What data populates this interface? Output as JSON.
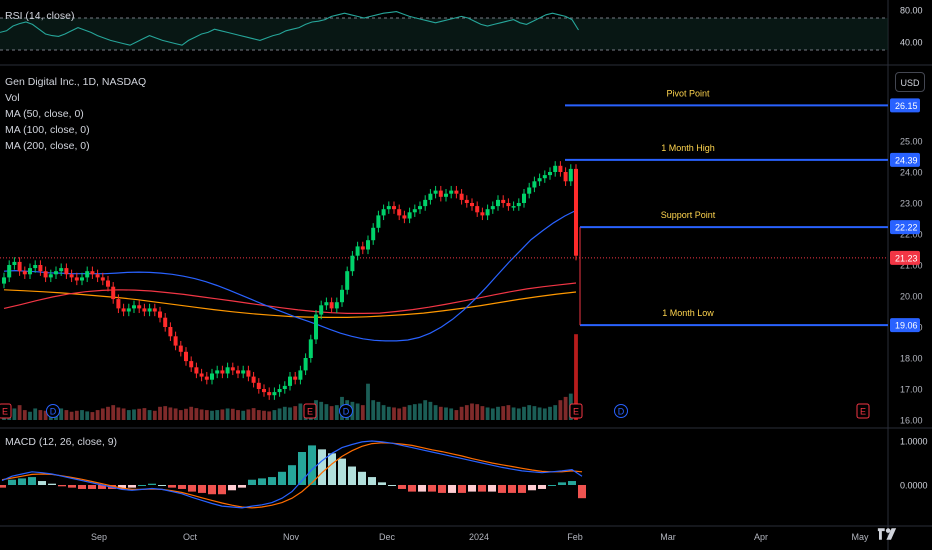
{
  "legend": {
    "rsi": "RSI (14, close)",
    "symbol": "Gen Digital Inc., 1D, NASDAQ",
    "vol": "Vol",
    "ma50": "MA (50, close, 0)",
    "ma100": "MA (100, close, 0)",
    "ma200": "MA (200, close, 0)",
    "macd": "MACD (12, 26, close, 9)"
  },
  "currency_button": "USD",
  "colors": {
    "up": "#26a69a",
    "down": "#ef5350",
    "up_bright": "#00d26a",
    "down_bright": "#ff2b2b",
    "ma50": "#2962ff",
    "ma100": "#f23645",
    "ma200": "#ff9800",
    "level_line": "#2962ff",
    "level_text": "#ffd54f",
    "rsi_line": "#26a69a",
    "macd_line": "#2962ff",
    "signal_line": "#ff6d00",
    "earnings": "#f23645",
    "dividend": "#2962ff"
  },
  "chart_data": [
    {
      "type": "line",
      "title": "RSI (14, close)",
      "y_ticks": [
        "80.00",
        "40.00"
      ],
      "levels": [
        70,
        30
      ],
      "values": [
        52,
        54,
        60,
        63,
        65,
        62,
        56,
        50,
        48,
        47,
        50,
        54,
        58,
        55,
        52,
        48,
        45,
        42,
        40,
        38,
        36,
        40,
        44,
        48,
        45,
        42,
        40,
        38,
        36,
        42,
        46,
        50,
        52,
        56,
        54,
        52,
        50,
        48,
        46,
        44,
        42,
        45,
        48,
        50,
        54,
        56,
        58,
        62,
        65,
        66,
        68,
        72,
        74,
        76,
        74,
        72,
        70,
        72,
        74,
        76,
        77,
        78,
        75,
        72,
        70,
        68,
        66,
        64,
        66,
        68,
        70,
        72,
        70,
        66,
        62,
        60,
        62,
        64,
        66,
        68,
        64,
        62,
        66,
        70,
        74,
        76,
        74,
        72,
        68,
        55
      ]
    },
    {
      "type": "candlestick",
      "title": "Gen Digital Inc., 1D, NASDAQ",
      "y_ticks": [
        "25.00",
        "24.00",
        "23.00",
        "22.00",
        "21.00",
        "20.00",
        "19.00",
        "18.00",
        "17.00",
        "16.00"
      ],
      "x_ticks": [
        "Sep",
        "Oct",
        "Nov",
        "Dec",
        "2024",
        "Feb",
        "Mar",
        "Apr",
        "May"
      ],
      "last_price": "21.23",
      "close": [
        20.6,
        21.0,
        21.1,
        20.8,
        20.7,
        20.9,
        21.0,
        20.8,
        20.6,
        20.7,
        20.8,
        20.9,
        20.7,
        20.6,
        20.5,
        20.6,
        20.8,
        20.7,
        20.6,
        20.5,
        20.3,
        19.9,
        19.6,
        19.5,
        19.6,
        19.7,
        19.6,
        19.5,
        19.6,
        19.5,
        19.3,
        19.0,
        18.7,
        18.4,
        18.2,
        17.9,
        17.7,
        17.5,
        17.4,
        17.3,
        17.5,
        17.6,
        17.5,
        17.7,
        17.6,
        17.5,
        17.6,
        17.4,
        17.2,
        17.0,
        16.9,
        16.8,
        16.9,
        17.0,
        17.1,
        17.4,
        17.3,
        17.6,
        18.0,
        18.6,
        19.4,
        19.7,
        19.8,
        19.6,
        19.8,
        20.2,
        20.8,
        21.3,
        21.6,
        21.5,
        21.8,
        22.2,
        22.6,
        22.8,
        22.9,
        22.8,
        22.6,
        22.5,
        22.7,
        22.8,
        22.9,
        23.1,
        23.3,
        23.4,
        23.2,
        23.3,
        23.4,
        23.3,
        23.1,
        23.0,
        22.9,
        22.7,
        22.6,
        22.8,
        22.9,
        23.1,
        23.0,
        22.9,
        22.9,
        23.0,
        23.3,
        23.5,
        23.7,
        23.8,
        23.9,
        24.0,
        24.2,
        24.0,
        23.7,
        24.1,
        21.3
      ],
      "volume": [
        30,
        40,
        35,
        45,
        30,
        25,
        35,
        30,
        28,
        30,
        32,
        35,
        30,
        25,
        28,
        30,
        26,
        24,
        30,
        35,
        40,
        45,
        38,
        35,
        30,
        32,
        34,
        36,
        30,
        28,
        40,
        42,
        38,
        35,
        30,
        34,
        40,
        36,
        32,
        30,
        28,
        30,
        32,
        35,
        34,
        30,
        28,
        32,
        36,
        30,
        28,
        26,
        30,
        35,
        40,
        38,
        42,
        50,
        45,
        40,
        60,
        55,
        48,
        42,
        45,
        70,
        60,
        55,
        50,
        45,
        110,
        60,
        55,
        45,
        40,
        38,
        35,
        40,
        45,
        48,
        50,
        60,
        55,
        45,
        40,
        38,
        35,
        30,
        40,
        45,
        50,
        48,
        42,
        38,
        35,
        40,
        42,
        45,
        38,
        35,
        40,
        45,
        42,
        38,
        35,
        40,
        45,
        60,
        70,
        80,
        260
      ],
      "ma50": [
        20.8,
        20.82,
        20.8,
        20.78,
        20.75,
        20.74,
        20.72,
        20.72,
        20.72,
        20.72,
        20.74,
        20.76,
        20.77,
        20.76,
        20.74,
        20.7,
        20.64,
        20.56,
        20.46,
        20.34,
        20.2,
        20.05,
        19.9,
        19.75,
        19.6,
        19.46,
        19.32,
        19.2,
        19.07,
        18.93,
        18.8,
        18.7,
        18.62,
        18.57,
        18.55,
        18.55,
        18.58,
        18.66,
        18.8,
        19.0,
        19.25,
        19.55,
        19.9,
        20.28,
        20.68,
        21.08,
        21.45,
        21.82,
        22.1,
        22.36,
        22.58,
        22.76
      ],
      "ma100": [
        19.6,
        19.72,
        19.85,
        19.97,
        20.07,
        20.14,
        20.18,
        20.2,
        20.19,
        20.16,
        20.11,
        20.05,
        19.98,
        19.91,
        19.84,
        19.76,
        19.69,
        19.62,
        19.55,
        19.5,
        19.46,
        19.44,
        19.44,
        19.45,
        19.5,
        19.56,
        19.64,
        19.73,
        19.83,
        19.93,
        20.04,
        20.14,
        20.23,
        20.3,
        20.36,
        20.42
      ],
      "ma200": [
        20.2,
        20.17,
        20.14,
        20.1,
        20.05,
        20.0,
        19.95,
        19.88,
        19.8,
        19.72,
        19.64,
        19.56,
        19.49,
        19.43,
        19.38,
        19.34,
        19.32,
        19.31,
        19.31,
        19.33,
        19.36,
        19.4,
        19.45,
        19.52,
        19.6,
        19.69,
        19.79,
        19.89,
        19.98,
        20.06,
        20.13
      ],
      "levels": [
        {
          "label": "Pivot Point",
          "value": 26.15,
          "price": "26.15"
        },
        {
          "label": "1 Month High",
          "value": 24.39,
          "price": "24.39"
        },
        {
          "label": "Support Point",
          "value": 22.22,
          "price": "22.22"
        },
        {
          "label": "1 Month Low",
          "value": 19.06,
          "price": "19.06"
        }
      ],
      "event_markers": [
        {
          "type": "earnings",
          "label": "E"
        },
        {
          "type": "dividend",
          "label": "D"
        },
        {
          "type": "earnings",
          "label": "E"
        },
        {
          "type": "dividend",
          "label": "D"
        },
        {
          "type": "earnings",
          "label": "E"
        },
        {
          "type": "dividend",
          "label": "D"
        },
        {
          "type": "earnings",
          "label": "E"
        }
      ]
    },
    {
      "type": "line",
      "title": "MACD (12, 26, close, 9)",
      "y_ticks": [
        "1.0000",
        "0.0000"
      ],
      "macd": [
        0.1,
        0.2,
        0.25,
        0.3,
        0.28,
        0.25,
        0.2,
        0.15,
        0.1,
        0.05,
        0.0,
        -0.05,
        -0.1,
        -0.12,
        -0.1,
        -0.08,
        -0.1,
        -0.15,
        -0.2,
        -0.28,
        -0.35,
        -0.42,
        -0.48,
        -0.5,
        -0.52,
        -0.48,
        -0.45,
        -0.4,
        -0.3,
        -0.15,
        0.1,
        0.35,
        0.55,
        0.72,
        0.85,
        0.92,
        0.98,
        1.0,
        0.98,
        0.95,
        0.9,
        0.85,
        0.8,
        0.75,
        0.7,
        0.65,
        0.6,
        0.55,
        0.5,
        0.45,
        0.4,
        0.36,
        0.32,
        0.3,
        0.28,
        0.3,
        0.32,
        0.35,
        0.2
      ],
      "signal": [
        0.12,
        0.16,
        0.2,
        0.24,
        0.25,
        0.24,
        0.21,
        0.17,
        0.13,
        0.08,
        0.03,
        -0.02,
        -0.07,
        -0.1,
        -0.1,
        -0.09,
        -0.1,
        -0.13,
        -0.17,
        -0.23,
        -0.29,
        -0.35,
        -0.41,
        -0.46,
        -0.5,
        -0.52,
        -0.5,
        -0.46,
        -0.4,
        -0.3,
        -0.15,
        0.05,
        0.28,
        0.48,
        0.65,
        0.78,
        0.88,
        0.94,
        0.96,
        0.95,
        0.93,
        0.9,
        0.85,
        0.8,
        0.76,
        0.71,
        0.66,
        0.6,
        0.55,
        0.5,
        0.46,
        0.42,
        0.38,
        0.34,
        0.31,
        0.3,
        0.3,
        0.32,
        0.3
      ]
    }
  ]
}
